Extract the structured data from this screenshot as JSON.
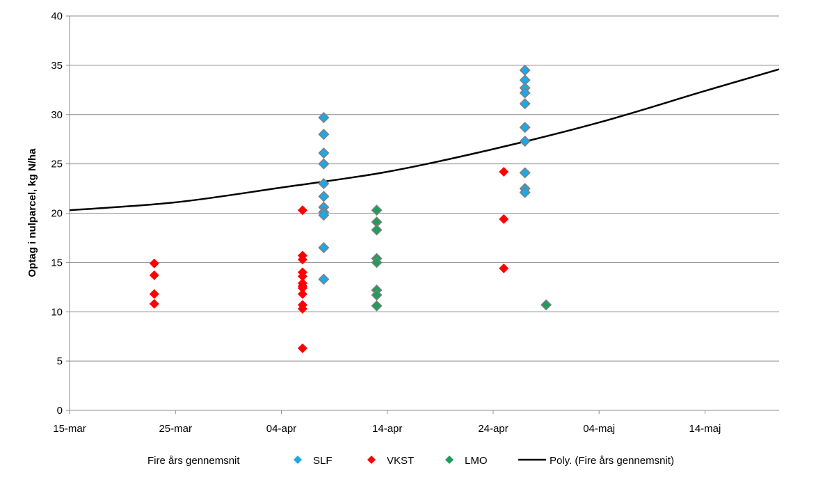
{
  "chart_data": {
    "type": "scatter",
    "title": "",
    "xlabel": "",
    "ylabel": "Optag i nulparcel, kg N/ha",
    "xlim": [
      "2015-03-15",
      "2015-05-21"
    ],
    "ylim": [
      0,
      40
    ],
    "yticks": [
      0,
      5,
      10,
      15,
      20,
      25,
      30,
      35,
      40
    ],
    "xticks": [
      {
        "date": "2015-03-15",
        "label": "15-mar"
      },
      {
        "date": "2015-03-25",
        "label": "25-mar"
      },
      {
        "date": "2015-04-04",
        "label": "04-apr"
      },
      {
        "date": "2015-04-14",
        "label": "14-apr"
      },
      {
        "date": "2015-04-24",
        "label": "24-apr"
      },
      {
        "date": "2015-05-04",
        "label": "04-maj"
      },
      {
        "date": "2015-05-14",
        "label": "14-maj"
      }
    ],
    "grid": "horizontal",
    "legend_position": "bottom",
    "legend_title": "Fire års gennemsnit",
    "series": [
      {
        "name": "SLF",
        "color": "#1fa7e6",
        "points": [
          {
            "x": "2015-04-08",
            "y": 29.7
          },
          {
            "x": "2015-04-08",
            "y": 28.0
          },
          {
            "x": "2015-04-08",
            "y": 26.1
          },
          {
            "x": "2015-04-08",
            "y": 25.0
          },
          {
            "x": "2015-04-08",
            "y": 23.0
          },
          {
            "x": "2015-04-08",
            "y": 21.7
          },
          {
            "x": "2015-04-08",
            "y": 20.6
          },
          {
            "x": "2015-04-08",
            "y": 20.1
          },
          {
            "x": "2015-04-08",
            "y": 19.8
          },
          {
            "x": "2015-04-08",
            "y": 16.5
          },
          {
            "x": "2015-04-08",
            "y": 13.3
          },
          {
            "x": "2015-04-27",
            "y": 34.5
          },
          {
            "x": "2015-04-27",
            "y": 33.5
          },
          {
            "x": "2015-04-27",
            "y": 32.7
          },
          {
            "x": "2015-04-27",
            "y": 32.2
          },
          {
            "x": "2015-04-27",
            "y": 31.1
          },
          {
            "x": "2015-04-27",
            "y": 28.7
          },
          {
            "x": "2015-04-27",
            "y": 27.3
          },
          {
            "x": "2015-04-27",
            "y": 24.1
          },
          {
            "x": "2015-04-27",
            "y": 22.5
          },
          {
            "x": "2015-04-27",
            "y": 22.1
          }
        ]
      },
      {
        "name": "VKST",
        "color": "#ff0000",
        "points": [
          {
            "x": "2015-03-23",
            "y": 14.9
          },
          {
            "x": "2015-03-23",
            "y": 13.7
          },
          {
            "x": "2015-03-23",
            "y": 11.8
          },
          {
            "x": "2015-03-23",
            "y": 10.8
          },
          {
            "x": "2015-04-06",
            "y": 20.3
          },
          {
            "x": "2015-04-06",
            "y": 15.7
          },
          {
            "x": "2015-04-06",
            "y": 15.3
          },
          {
            "x": "2015-04-06",
            "y": 14.0
          },
          {
            "x": "2015-04-06",
            "y": 13.6
          },
          {
            "x": "2015-04-06",
            "y": 12.9
          },
          {
            "x": "2015-04-06",
            "y": 12.6
          },
          {
            "x": "2015-04-06",
            "y": 12.4
          },
          {
            "x": "2015-04-06",
            "y": 11.8
          },
          {
            "x": "2015-04-06",
            "y": 10.7
          },
          {
            "x": "2015-04-06",
            "y": 10.3
          },
          {
            "x": "2015-04-06",
            "y": 6.3
          },
          {
            "x": "2015-04-25",
            "y": 24.2
          },
          {
            "x": "2015-04-25",
            "y": 19.4
          },
          {
            "x": "2015-04-25",
            "y": 14.4
          }
        ]
      },
      {
        "name": "LMO",
        "color": "#1e9e5a",
        "points": [
          {
            "x": "2015-04-13",
            "y": 20.3
          },
          {
            "x": "2015-04-13",
            "y": 19.1
          },
          {
            "x": "2015-04-13",
            "y": 18.3
          },
          {
            "x": "2015-04-13",
            "y": 15.4
          },
          {
            "x": "2015-04-13",
            "y": 15.0
          },
          {
            "x": "2015-04-13",
            "y": 12.2
          },
          {
            "x": "2015-04-13",
            "y": 11.7
          },
          {
            "x": "2015-04-13",
            "y": 10.6
          },
          {
            "x": "2015-04-29",
            "y": 10.7
          }
        ]
      }
    ],
    "trendline": {
      "name": "Poly. (Fire års gennemsnit)",
      "color": "#000000",
      "points": [
        {
          "x": "2015-03-15",
          "y": 20.3
        },
        {
          "x": "2015-03-25",
          "y": 21.1
        },
        {
          "x": "2015-04-04",
          "y": 22.6
        },
        {
          "x": "2015-04-14",
          "y": 24.2
        },
        {
          "x": "2015-04-24",
          "y": 26.5
        },
        {
          "x": "2015-05-04",
          "y": 29.2
        },
        {
          "x": "2015-05-14",
          "y": 32.4
        },
        {
          "x": "2015-05-21",
          "y": 34.6
        }
      ]
    }
  }
}
